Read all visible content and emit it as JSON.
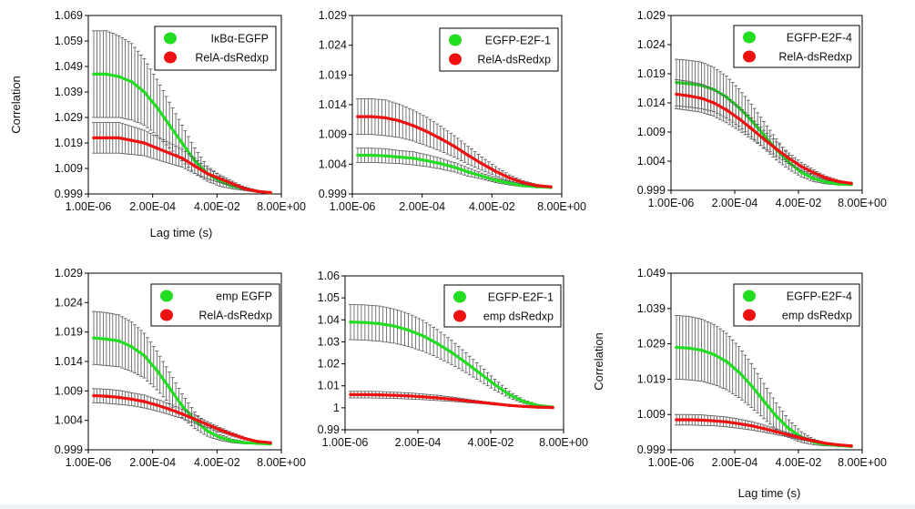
{
  "colors": {
    "green": "#22dd22",
    "red": "#ee1111",
    "errorbar": "#555555",
    "background": "#eef3f8"
  },
  "chart_data": [
    {
      "type": "line",
      "x_ticks": [
        "1.00E-06",
        "2.00E-04",
        "4.00E-02",
        "8.00E+00"
      ],
      "y_ticks": [
        "0.999",
        "1.009",
        "1.019",
        "1.029",
        "1.039",
        "1.049",
        "1.059",
        "1.069"
      ],
      "ylim": [
        0.999,
        1.069
      ],
      "ylabel": "Correlation",
      "xlabel": "Lag time (s)",
      "legend_position": "top-right",
      "series": [
        {
          "name": "IκBα-EGFP",
          "color": "green",
          "y": [
            1.046,
            1.046,
            1.045,
            1.043,
            1.039,
            1.033,
            1.026,
            1.019,
            1.012,
            1.007,
            1.004,
            1.002,
            1.001,
            1.0,
            0.9995
          ],
          "err": [
            0.017,
            0.017,
            0.016,
            0.015,
            0.013,
            0.011,
            0.009,
            0.007,
            0.005,
            0.003,
            0.002,
            0.001,
            0.0007,
            0.0004,
            0.0002
          ]
        },
        {
          "name": "RelA-dsRedxp",
          "color": "red",
          "y": [
            1.021,
            1.021,
            1.021,
            1.02,
            1.019,
            1.017,
            1.015,
            1.013,
            1.01,
            1.007,
            1.005,
            1.003,
            1.001,
            1.0,
            0.9995
          ],
          "err": [
            0.006,
            0.006,
            0.006,
            0.0055,
            0.005,
            0.0045,
            0.004,
            0.0035,
            0.003,
            0.002,
            0.0015,
            0.001,
            0.0005,
            0.0003,
            0.0002
          ]
        }
      ]
    },
    {
      "type": "line",
      "x_ticks": [
        "1.00E-06",
        "2.00E-04",
        "4.00E-02",
        "8.00E+00"
      ],
      "y_ticks": [
        "0.999",
        "1.004",
        "1.009",
        "1.014",
        "1.019",
        "1.024",
        "1.029"
      ],
      "ylim": [
        0.999,
        1.029
      ],
      "ylabel": "",
      "xlabel": "",
      "legend_position": "top-right",
      "series": [
        {
          "name": "EGFP-E2F-1",
          "color": "green",
          "y": [
            1.0055,
            1.0055,
            1.0054,
            1.0052,
            1.005,
            1.0046,
            1.0041,
            1.0035,
            1.0027,
            1.002,
            1.0013,
            1.0008,
            1.0004,
            1.0002,
            1.0001
          ],
          "err": [
            0.0012,
            0.0012,
            0.0012,
            0.0011,
            0.0011,
            0.001,
            0.0009,
            0.0008,
            0.0007,
            0.0005,
            0.0004,
            0.0003,
            0.0002,
            0.0001,
            0.0001
          ]
        },
        {
          "name": "RelA-dsRedxp",
          "color": "red",
          "y": [
            1.012,
            1.012,
            1.0118,
            1.0113,
            1.0105,
            1.0095,
            1.0083,
            1.007,
            1.0055,
            1.0041,
            1.0028,
            1.0017,
            1.0009,
            1.0004,
            1.0002
          ],
          "err": [
            0.003,
            0.003,
            0.003,
            0.0028,
            0.0026,
            0.0024,
            0.0021,
            0.0018,
            0.0015,
            0.0011,
            0.0008,
            0.0005,
            0.0003,
            0.0002,
            0.0001
          ]
        }
      ]
    },
    {
      "type": "line",
      "x_ticks": [
        "1.00E-06",
        "2.00E-04",
        "4.00E-02",
        "8.00E+00"
      ],
      "y_ticks": [
        "0.999",
        "1.004",
        "1.009",
        "1.014",
        "1.019",
        "1.024",
        "1.029"
      ],
      "ylim": [
        0.999,
        1.029
      ],
      "ylabel": "",
      "xlabel": "",
      "legend_position": "top-right",
      "series": [
        {
          "name": "EGFP-E2F-4",
          "color": "green",
          "y": [
            1.0175,
            1.0173,
            1.017,
            1.0163,
            1.015,
            1.0132,
            1.011,
            1.0085,
            1.006,
            1.0038,
            1.0021,
            1.001,
            1.0004,
            1.0001,
            1.0
          ],
          "err": [
            0.004,
            0.004,
            0.004,
            0.0038,
            0.0036,
            0.0032,
            0.0028,
            0.0023,
            0.0018,
            0.0012,
            0.0008,
            0.0005,
            0.0003,
            0.0002,
            0.0001
          ]
        },
        {
          "name": "RelA-dsRedxp",
          "color": "red",
          "y": [
            1.0155,
            1.0152,
            1.0148,
            1.014,
            1.0128,
            1.0113,
            1.0096,
            1.0078,
            1.0061,
            1.0045,
            1.0031,
            1.002,
            1.0011,
            1.0005,
            1.0002
          ],
          "err": [
            0.0025,
            0.0025,
            0.0024,
            0.0023,
            0.0022,
            0.002,
            0.0018,
            0.0015,
            0.0012,
            0.0009,
            0.0007,
            0.0005,
            0.0003,
            0.0002,
            0.0001
          ]
        }
      ]
    },
    {
      "type": "line",
      "x_ticks": [
        "1.00E-06",
        "2.00E-04",
        "4.00E-02",
        "8.00E+00"
      ],
      "y_ticks": [
        "0.999",
        "1.004",
        "1.009",
        "1.014",
        "1.019",
        "1.024",
        "1.029"
      ],
      "ylim": [
        0.999,
        1.029
      ],
      "ylabel": "",
      "xlabel": "",
      "legend_position": "top-right",
      "series": [
        {
          "name": "emp EGFP",
          "color": "green",
          "y": [
            1.018,
            1.0178,
            1.0175,
            1.0165,
            1.015,
            1.0125,
            1.0095,
            1.0065,
            1.004,
            1.0022,
            1.0011,
            1.0005,
            1.0002,
            1.0001,
            1.0
          ],
          "err": [
            0.0045,
            0.0045,
            0.0044,
            0.0042,
            0.0038,
            0.0033,
            0.0027,
            0.002,
            0.0014,
            0.0009,
            0.0005,
            0.0003,
            0.0002,
            0.0001,
            0.0001
          ]
        },
        {
          "name": "RelA-dsRedxp",
          "color": "red",
          "y": [
            1.0082,
            1.0081,
            1.0079,
            1.0076,
            1.0072,
            1.0066,
            1.0059,
            1.0051,
            1.0042,
            1.0033,
            1.0024,
            1.0016,
            1.0009,
            1.0004,
            1.0002
          ],
          "err": [
            0.0012,
            0.0012,
            0.0012,
            0.0011,
            0.0011,
            0.001,
            0.0009,
            0.0008,
            0.0007,
            0.0005,
            0.0004,
            0.0003,
            0.0002,
            0.0001,
            0.0001
          ]
        }
      ]
    },
    {
      "type": "line",
      "x_ticks": [
        "1.00E-06",
        "2.00E-04",
        "4.00E-02",
        "8.00E+00"
      ],
      "y_ticks": [
        "0.99",
        "1",
        "1.01",
        "1.02",
        "1.03",
        "1.04",
        "1.05",
        "1.06"
      ],
      "ylim": [
        0.99,
        1.06
      ],
      "ylabel": "",
      "xlabel": "",
      "legend_position": "top-right",
      "series": [
        {
          "name": "EGFP-E2F-1",
          "color": "green",
          "y": [
            1.039,
            1.0388,
            1.0383,
            1.0372,
            1.0354,
            1.0328,
            1.0293,
            1.0252,
            1.0205,
            1.0155,
            1.0105,
            1.006,
            1.0028,
            1.001,
            1.0003
          ],
          "err": [
            0.008,
            0.008,
            0.008,
            0.0078,
            0.0075,
            0.007,
            0.0063,
            0.0055,
            0.0045,
            0.0035,
            0.0025,
            0.0015,
            0.0008,
            0.0004,
            0.0002
          ]
        },
        {
          "name": "emp dsRedxp",
          "color": "red",
          "y": [
            1.006,
            1.006,
            1.0059,
            1.0057,
            1.0054,
            1.005,
            1.0045,
            1.0039,
            1.0032,
            1.0025,
            1.0018,
            1.0011,
            1.0006,
            1.0003,
            1.0001
          ],
          "err": [
            0.0015,
            0.0015,
            0.0015,
            0.0014,
            0.0014,
            0.0013,
            0.0012,
            0.001,
            0.0008,
            0.0006,
            0.0005,
            0.0003,
            0.0002,
            0.0001,
            0.0001
          ]
        }
      ]
    },
    {
      "type": "line",
      "x_ticks": [
        "1.00E-06",
        "2.00E-04",
        "4.00E-02",
        "8.00E+00"
      ],
      "y_ticks": [
        "0.999",
        "1.009",
        "1.019",
        "1.029",
        "1.039",
        "1.049"
      ],
      "ylim": [
        0.999,
        1.049
      ],
      "ylabel": "Correlation",
      "xlabel": "Lag time (s)",
      "legend_position": "top-right",
      "series": [
        {
          "name": "EGFP-E2F-4",
          "color": "green",
          "y": [
            1.028,
            1.0278,
            1.0272,
            1.026,
            1.024,
            1.021,
            1.0172,
            1.0128,
            1.0085,
            1.005,
            1.0026,
            1.0012,
            1.0005,
            1.0002,
            1.0
          ],
          "err": [
            0.009,
            0.009,
            0.0088,
            0.0085,
            0.008,
            0.0072,
            0.0062,
            0.005,
            0.0038,
            0.0025,
            0.0015,
            0.0008,
            0.0004,
            0.0002,
            0.0001
          ]
        },
        {
          "name": "emp dsRedxp",
          "color": "red",
          "y": [
            1.0075,
            1.0075,
            1.0074,
            1.0072,
            1.0069,
            1.0064,
            1.0058,
            1.005,
            1.0041,
            1.0032,
            1.0023,
            1.0015,
            1.0008,
            1.0004,
            1.0001
          ],
          "err": [
            0.0015,
            0.0015,
            0.0015,
            0.0014,
            0.0014,
            0.0013,
            0.0012,
            0.001,
            0.0008,
            0.0006,
            0.0005,
            0.0003,
            0.0002,
            0.0001,
            0.0001
          ]
        }
      ]
    }
  ]
}
